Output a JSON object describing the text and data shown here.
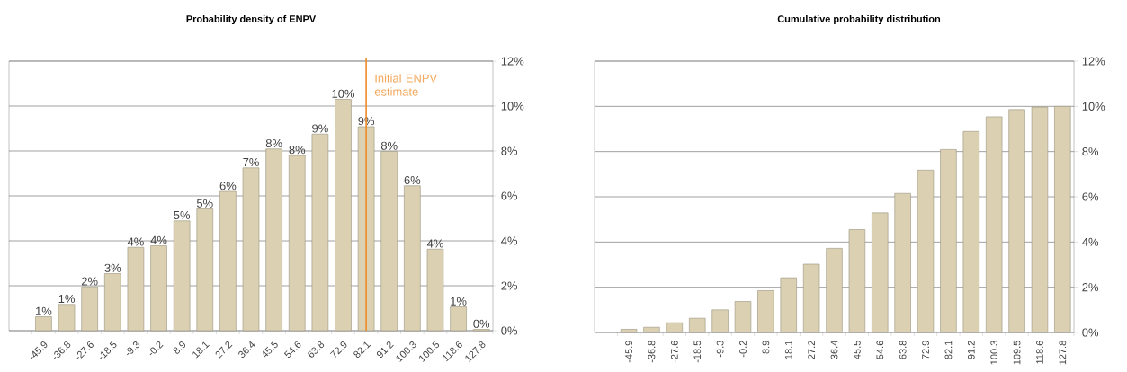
{
  "chart_data": [
    {
      "type": "bar",
      "title": "Probability density of ENPV",
      "categories": [
        "-45.9",
        "-36.8",
        "-27.6",
        "-18.5",
        "-9.3",
        "-0.2",
        "8.9",
        "18.1",
        "27.2",
        "36.4",
        "45.5",
        "54.6",
        "63.8",
        "72.9",
        "82.1",
        "91.2",
        "100.3",
        "100.5",
        "118.6",
        "127.8"
      ],
      "values": [
        0.62,
        1.17,
        1.95,
        2.54,
        3.71,
        3.78,
        4.89,
        5.42,
        6.2,
        7.25,
        8.09,
        7.8,
        8.75,
        10.3,
        9.08,
        7.98,
        6.45,
        3.63,
        1.06,
        0.06
      ],
      "value_labels": [
        "1%",
        "1%",
        "2%",
        "3%",
        "4%",
        "4%",
        "5%",
        "5%",
        "6%",
        "7%",
        "8%",
        "8%",
        "9%",
        "10%",
        "9%",
        "8%",
        "6%",
        "4%",
        "1%",
        "0%"
      ],
      "color": "#dbd1b2",
      "ylim": [
        0,
        12
      ],
      "yticks": [
        {
          "value": 0,
          "label": "0%"
        },
        {
          "value": 2,
          "label": "2%"
        },
        {
          "value": 4,
          "label": "4%"
        },
        {
          "value": 6,
          "label": "6%"
        },
        {
          "value": 8,
          "label": "8%"
        },
        {
          "value": 10,
          "label": "10%"
        },
        {
          "value": 12,
          "label": "12%"
        }
      ],
      "grid": "y",
      "ref_lines": [
        {
          "axis": "x",
          "value": "82.1",
          "label": "Initial ENPV estimate",
          "color": "#f08a24"
        }
      ]
    },
    {
      "type": "bar",
      "title": "Cumulative probability distribution",
      "categories": [
        "-45.9",
        "-36.8",
        "-27.6",
        "-18.5",
        "-9.3",
        "-0.2",
        "8.9",
        "18.1",
        "27.2",
        "36.4",
        "45.5",
        "54.6",
        "63.8",
        "72.9",
        "82.1",
        "91.2",
        "100.3",
        "109.5",
        "118.6",
        "127.8"
      ],
      "values": [
        0.14,
        0.23,
        0.43,
        0.63,
        1.0,
        1.37,
        1.85,
        2.42,
        3.02,
        3.72,
        4.55,
        5.29,
        6.15,
        7.18,
        8.09,
        8.89,
        9.54,
        9.86,
        9.97,
        10.0
      ],
      "color": "#dbd1b2",
      "ylim": [
        0,
        12
      ],
      "yticks": [
        {
          "value": 0,
          "label": "0%"
        },
        {
          "value": 2,
          "label": "2%"
        },
        {
          "value": 4,
          "label": "4%"
        },
        {
          "value": 6,
          "label": "6%"
        },
        {
          "value": 8,
          "label": "8%"
        },
        {
          "value": 10,
          "label": "10%"
        },
        {
          "value": 12,
          "label": "12%"
        }
      ],
      "grid": "y"
    }
  ]
}
